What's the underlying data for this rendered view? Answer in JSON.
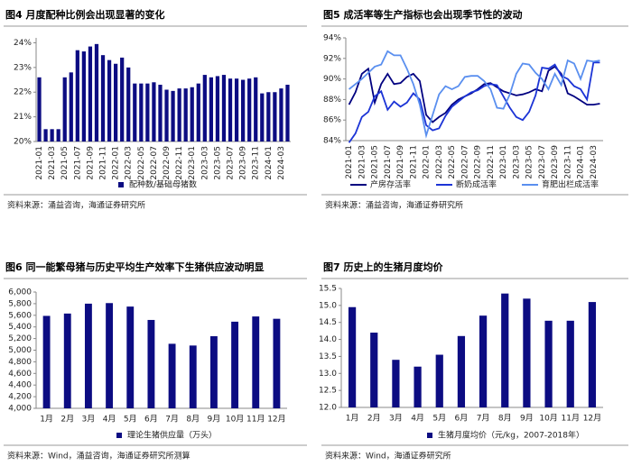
{
  "chart_data": [
    {
      "type": "bar",
      "title": "图4 月度配种比例会出现显著的变化",
      "source": "资料来源：涌益咨询，海通证券研究所",
      "categories": [
        "2021-01",
        null,
        "2021-03",
        null,
        "2021-05",
        null,
        "2021-07",
        null,
        "2021-09",
        null,
        "2021-11",
        null,
        "2022-01",
        null,
        "2022-03",
        null,
        "2022-05",
        null,
        "2022-07",
        null,
        "2022-09",
        null,
        "2022-11",
        null,
        "2023-01",
        null,
        "2023-03",
        null,
        "2023-05",
        null,
        "2023-07",
        null,
        "2023-09",
        null,
        "2023-11",
        null,
        "2024-01",
        null,
        "2024-03",
        null
      ],
      "series": [
        {
          "name": "配种数/基础母猪数",
          "color": "#0c0c82",
          "values": [
            22.6,
            20.5,
            20.5,
            20.5,
            22.6,
            22.8,
            23.7,
            23.65,
            23.85,
            23.95,
            23.5,
            23.3,
            23.15,
            23.4,
            23.0,
            22.35,
            22.35,
            22.35,
            22.4,
            22.3,
            22.1,
            22.05,
            22.15,
            22.15,
            22.2,
            22.35,
            22.7,
            22.6,
            22.65,
            22.7,
            22.55,
            22.55,
            22.5,
            22.55,
            22.6,
            21.95,
            22.0,
            22.0,
            22.15,
            22.3
          ]
        }
      ],
      "ylim": [
        20,
        24.2
      ],
      "yticks": [
        {
          "value": 20,
          "label": "20%"
        },
        {
          "value": 21,
          "label": "21%"
        },
        {
          "value": 22,
          "label": "22%"
        },
        {
          "value": 23,
          "label": "23%"
        },
        {
          "value": 24,
          "label": "24%"
        }
      ],
      "rotate_x_labels": true
    },
    {
      "type": "line",
      "title": "图5 成活率等生产指标也会出现季节性的波动",
      "source": "资料来源：涌益咨询，海通证券研究所",
      "categories": [
        "2021-01",
        null,
        "2021-03",
        null,
        "2021-05",
        null,
        "2021-07",
        null,
        "2021-09",
        null,
        "2021-11",
        null,
        "2022-01",
        null,
        "2022-03",
        null,
        "2022-05",
        null,
        "2022-07",
        null,
        "2022-09",
        null,
        "2022-11",
        null,
        "2023-01",
        null,
        "2023-03",
        null,
        "2023-05",
        null,
        "2023-07",
        null,
        "2023-09",
        null,
        "2023-11",
        null,
        "2024-01",
        null,
        "2024-03",
        null
      ],
      "series": [
        {
          "name": "产房存活率",
          "color": "#000080",
          "values": [
            87.5,
            88.7,
            90.5,
            91.0,
            87.7,
            89.5,
            90.5,
            89.5,
            89.6,
            90.2,
            90.5,
            89.8,
            86.5,
            85.8,
            86.3,
            86.7,
            87.5,
            88.0,
            88.3,
            88.6,
            89.0,
            89.5,
            89.6,
            89.2,
            88.8,
            88.6,
            88.4,
            88.5,
            88.7,
            89.0,
            88.8,
            90.8,
            91.2,
            90.5,
            88.6,
            88.3,
            87.9,
            87.5,
            87.5,
            87.6
          ]
        },
        {
          "name": "断奶成活率",
          "color": "#1c34d6",
          "values": [
            83.8,
            84.7,
            86.3,
            86.8,
            88.3,
            88.8,
            87.0,
            87.8,
            87.3,
            87.7,
            88.6,
            88.0,
            85.5,
            85.0,
            85.2,
            86.4,
            87.3,
            87.8,
            88.3,
            88.7,
            88.9,
            89.3,
            89.5,
            89.4,
            88.3,
            87.2,
            86.3,
            86.0,
            86.8,
            88.4,
            91.1,
            91.0,
            91.4,
            90.3,
            90.0,
            89.3,
            89.0,
            88.0,
            91.6,
            91.6
          ]
        },
        {
          "name": "育肥出栏成活率",
          "color": "#5a8fef",
          "values": [
            89.0,
            89.5,
            90.0,
            90.6,
            91.2,
            91.4,
            92.7,
            92.3,
            92.3,
            91.0,
            89.5,
            87.5,
            84.5,
            86.5,
            88.5,
            89.3,
            89.0,
            89.3,
            90.2,
            90.3,
            90.3,
            89.8,
            89.0,
            87.2,
            87.1,
            88.5,
            90.5,
            91.5,
            91.4,
            90.6,
            90.0,
            89.0,
            90.5,
            89.4,
            91.8,
            91.5,
            90.0,
            91.8,
            91.7,
            91.8
          ]
        }
      ],
      "ylim": [
        84,
        94
      ],
      "yticks": [
        {
          "value": 84,
          "label": "84%"
        },
        {
          "value": 86,
          "label": "86%"
        },
        {
          "value": 88,
          "label": "88%"
        },
        {
          "value": 90,
          "label": "90%"
        },
        {
          "value": 92,
          "label": "92%"
        },
        {
          "value": 94,
          "label": "94%"
        }
      ],
      "rotate_x_labels": true
    },
    {
      "type": "bar",
      "title": "图6 同一能繁母猪与历史平均生产效率下生猪供应波动明显",
      "source": "资料来源：Wind，涌益咨询，海通证券研究所测算",
      "categories": [
        "1月",
        "2月",
        "3月",
        "4月",
        "5月",
        "6月",
        "7月",
        "8月",
        "9月",
        "10月",
        "11月",
        "12月"
      ],
      "series": [
        {
          "name": "理论生猪供应量（万头）",
          "color": "#0c0c82",
          "values": [
            5590,
            5630,
            5800,
            5810,
            5750,
            5520,
            5110,
            5080,
            5240,
            5490,
            5580,
            5540
          ]
        }
      ],
      "ylim": [
        4000,
        6000
      ],
      "yticks": [
        {
          "value": 4000,
          "label": "4,000"
        },
        {
          "value": 4200,
          "label": "4,200"
        },
        {
          "value": 4400,
          "label": "4,400"
        },
        {
          "value": 4600,
          "label": "4,600"
        },
        {
          "value": 4800,
          "label": "4,800"
        },
        {
          "value": 5000,
          "label": "5,000"
        },
        {
          "value": 5200,
          "label": "5,200"
        },
        {
          "value": 5400,
          "label": "5,400"
        },
        {
          "value": 5600,
          "label": "5,600"
        },
        {
          "value": 5800,
          "label": "5,800"
        },
        {
          "value": 6000,
          "label": "6,000"
        }
      ],
      "rotate_x_labels": false
    },
    {
      "type": "bar",
      "title": "图7 历史上的生猪月度均价",
      "source": "资料来源：Wind，海通证券研究所",
      "categories": [
        "1月",
        "2月",
        "3月",
        "4月",
        "5月",
        "6月",
        "7月",
        "8月",
        "9月",
        "10月",
        "11月",
        "12月"
      ],
      "series": [
        {
          "name": "生猪月度均价（元/kg，2007-2018年）",
          "color": "#0c0c82",
          "values": [
            14.95,
            14.2,
            13.4,
            13.2,
            13.55,
            14.1,
            14.7,
            15.35,
            15.2,
            14.55,
            14.55,
            15.1
          ]
        }
      ],
      "ylim": [
        12,
        15.5
      ],
      "yticks": [
        {
          "value": 12,
          "label": "12.0"
        },
        12.5,
        {
          "value": 13,
          "label": "13.0"
        },
        13.5,
        {
          "value": 14,
          "label": "14.0"
        },
        14.5,
        {
          "value": 15,
          "label": "15.0"
        },
        15.5
      ],
      "rotate_x_labels": false
    }
  ]
}
